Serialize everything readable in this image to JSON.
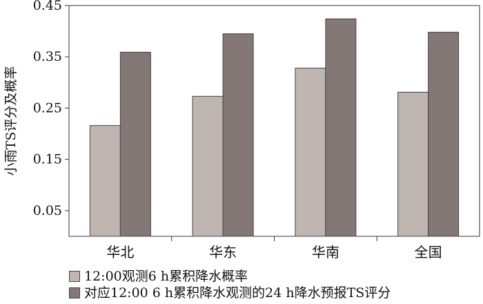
{
  "chart_data": {
    "type": "bar",
    "categories": [
      "华北",
      "华东",
      "华南",
      "全国"
    ],
    "series": [
      {
        "name": "12:00观测6 h累积降水概率",
        "values": [
          0.216,
          0.273,
          0.328,
          0.281
        ],
        "color": "#bfb5b1"
      },
      {
        "name": "对应12:00 6 h累积降水观测的24 h降水预报TS评分",
        "values": [
          0.359,
          0.395,
          0.424,
          0.398
        ],
        "color": "#847876"
      }
    ],
    "title": "",
    "xlabel": "",
    "ylabel": "小雨TS评分及概率",
    "ylim": [
      0.0,
      0.45
    ],
    "yticks": [
      "0.05",
      "0.15",
      "0.25",
      "0.35",
      "0.45"
    ],
    "legend_position": "bottom-left",
    "grid": false
  }
}
